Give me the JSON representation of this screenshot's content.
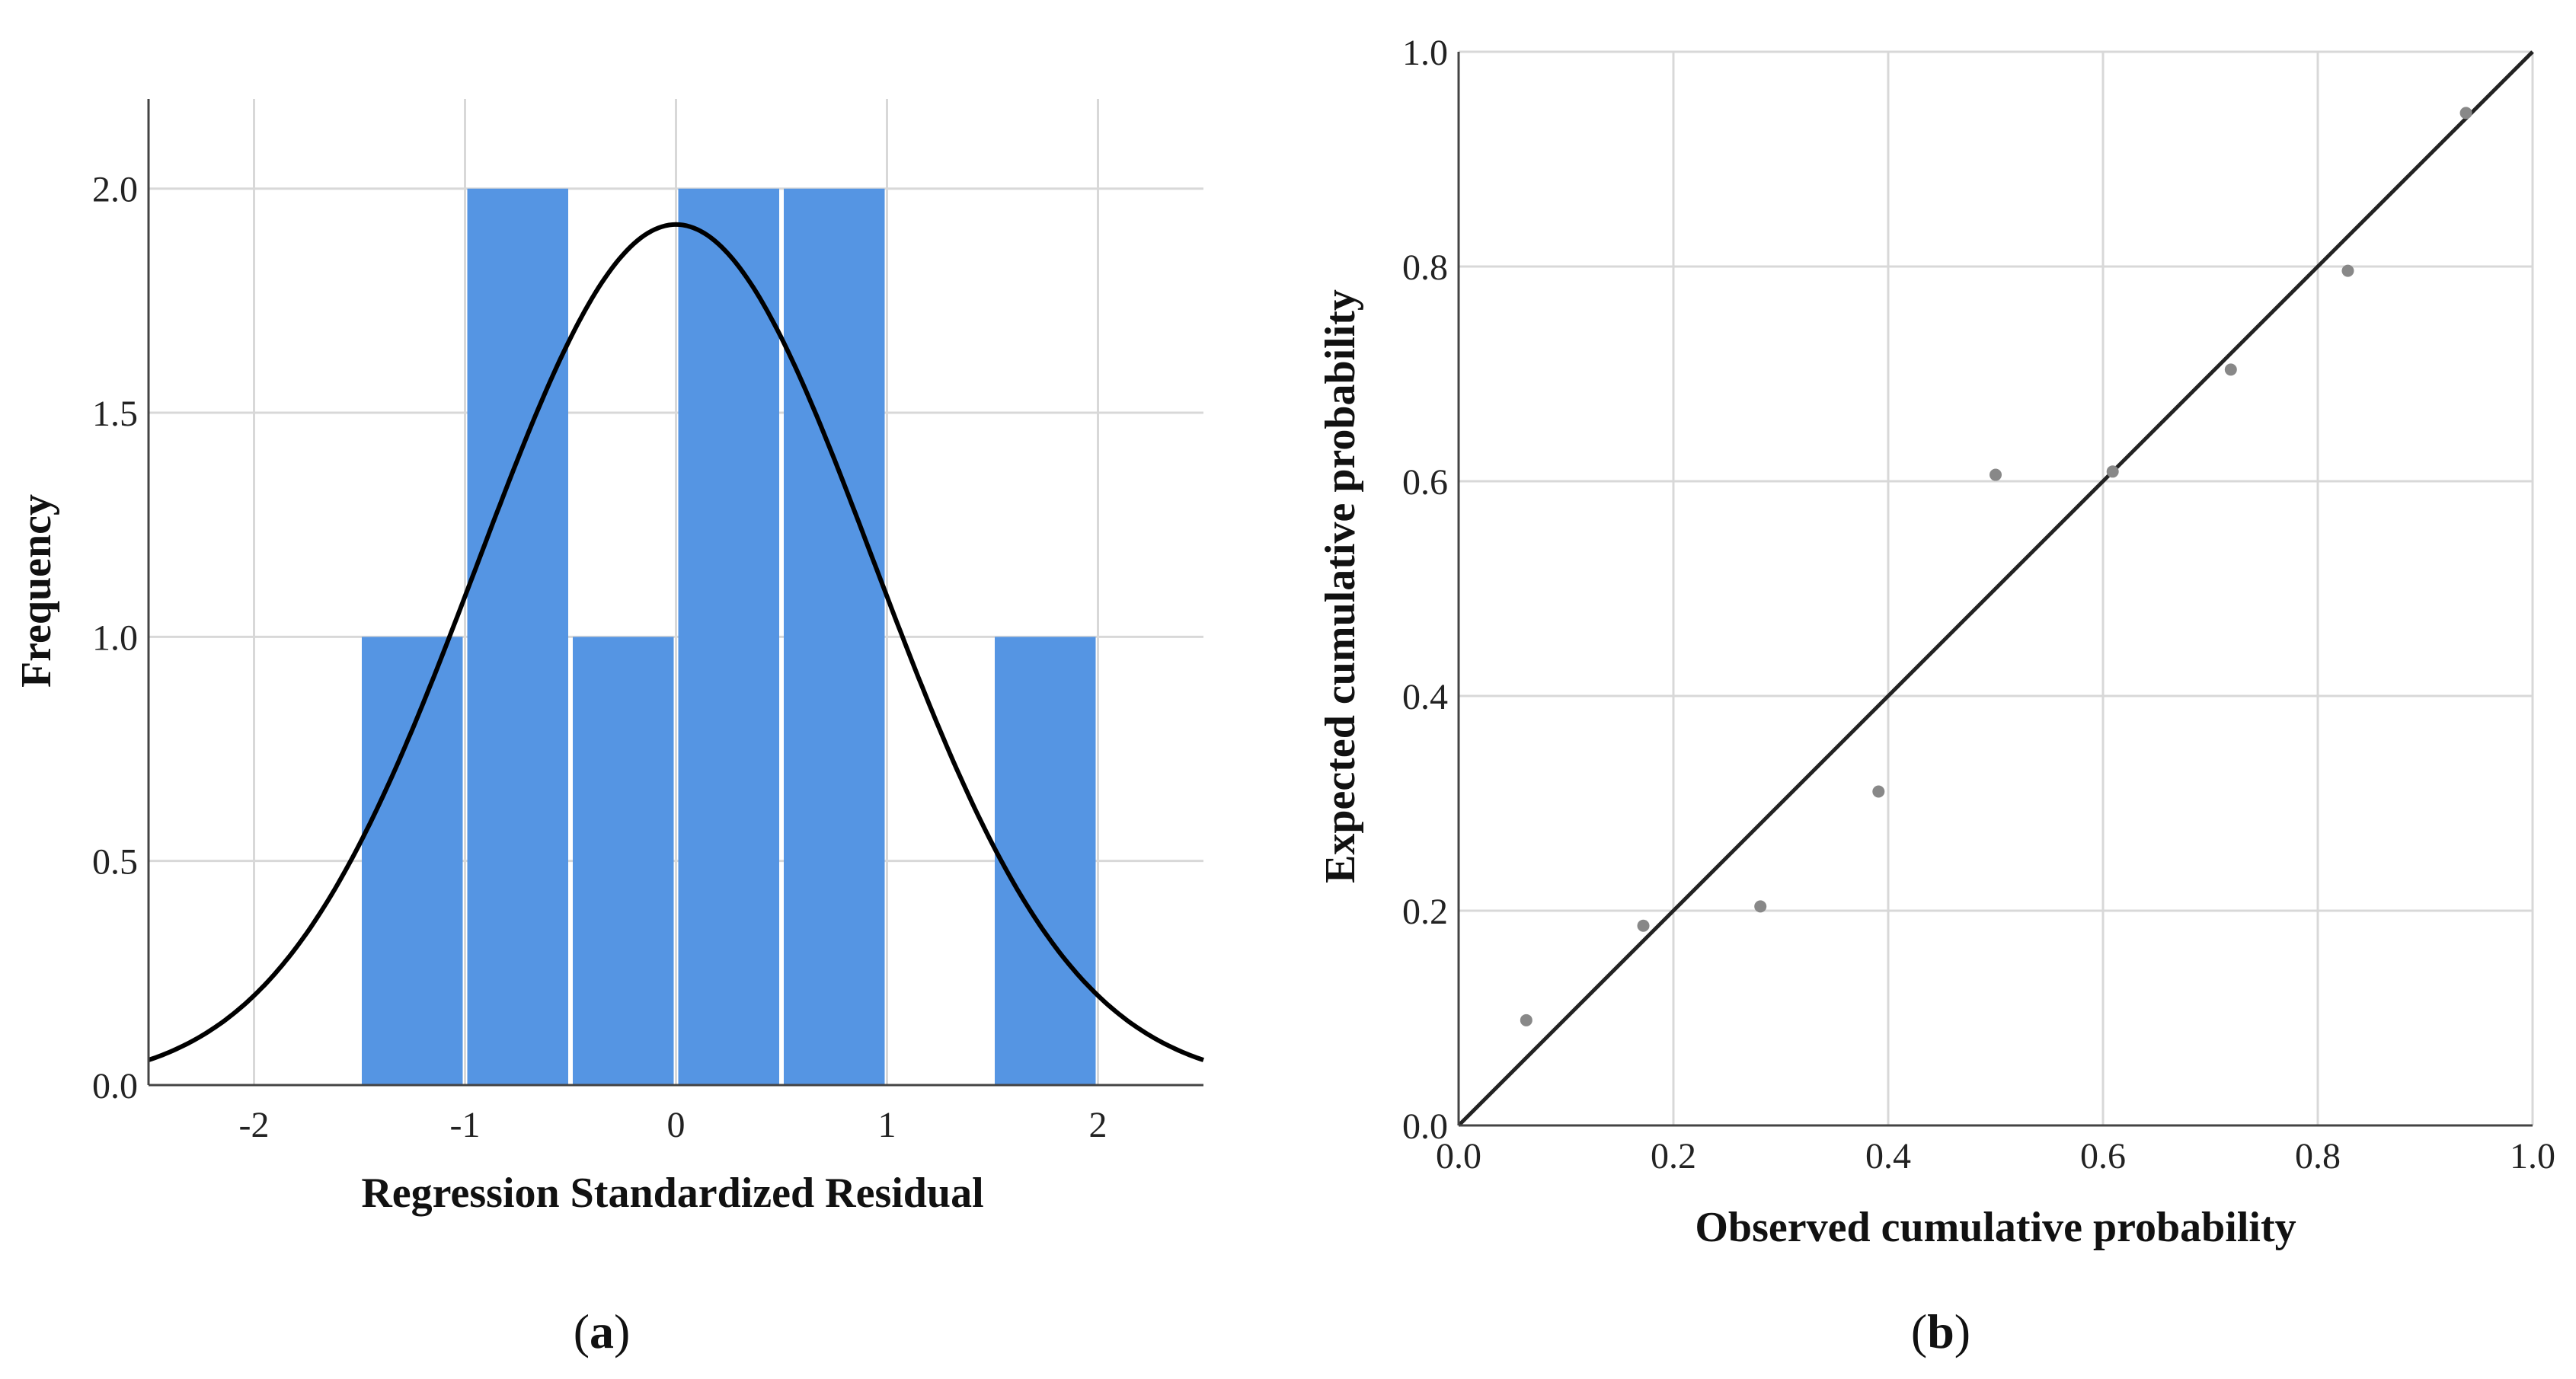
{
  "chart_data": [
    {
      "panel": "a",
      "type": "bar",
      "subtype": "histogram with normal curve",
      "xlabel": "Regression Standardized Residual",
      "ylabel": "Frequency",
      "xlim": [
        -2.5,
        2.5
      ],
      "ylim": [
        0,
        2.2
      ],
      "xticks": [
        "-2",
        "-1",
        "0",
        "1",
        "2"
      ],
      "yticks": [
        "0.0",
        "0.5",
        "1.0",
        "1.5",
        "2.0"
      ],
      "grid": true,
      "bar_color": "#5595e3",
      "bins": [
        {
          "x0": -1.5,
          "x1": -1.0,
          "value": 1
        },
        {
          "x0": -1.0,
          "x1": -0.5,
          "value": 2
        },
        {
          "x0": -0.5,
          "x1": 0.0,
          "value": 1
        },
        {
          "x0": 0.0,
          "x1": 0.5,
          "value": 2
        },
        {
          "x0": 0.5,
          "x1": 1.0,
          "value": 2
        },
        {
          "x0": 1.5,
          "x1": 2.0,
          "value": 1
        }
      ],
      "normal_curve": {
        "mean": 0.0,
        "sd": 0.94,
        "peak": 1.92,
        "color": "#000000"
      },
      "caption_open": "(",
      "caption_letter": "a",
      "caption_close": ")"
    },
    {
      "panel": "b",
      "type": "scatter",
      "subtype": "normal P-P plot",
      "xlabel": "Observed cumulative probability",
      "ylabel": "Expected cumulative probability",
      "xlim": [
        0.0,
        1.0
      ],
      "ylim": [
        0.0,
        1.0
      ],
      "xticks": [
        "0.0",
        "0.2",
        "0.4",
        "0.6",
        "0.8",
        "1.0"
      ],
      "yticks": [
        "0.0",
        "0.2",
        "0.4",
        "0.6",
        "0.8",
        "1.0"
      ],
      "grid": true,
      "reference_line": {
        "from": [
          0,
          0
        ],
        "to": [
          1,
          1
        ],
        "color": "#222222"
      },
      "points": [
        {
          "x": 0.063,
          "y": 0.098
        },
        {
          "x": 0.172,
          "y": 0.186
        },
        {
          "x": 0.281,
          "y": 0.204
        },
        {
          "x": 0.391,
          "y": 0.311
        },
        {
          "x": 0.5,
          "y": 0.606
        },
        {
          "x": 0.609,
          "y": 0.609
        },
        {
          "x": 0.719,
          "y": 0.704
        },
        {
          "x": 0.828,
          "y": 0.796
        },
        {
          "x": 0.938,
          "y": 0.943
        }
      ],
      "point_color": "#888888",
      "caption_open": "(",
      "caption_letter": "b",
      "caption_close": ")"
    }
  ]
}
